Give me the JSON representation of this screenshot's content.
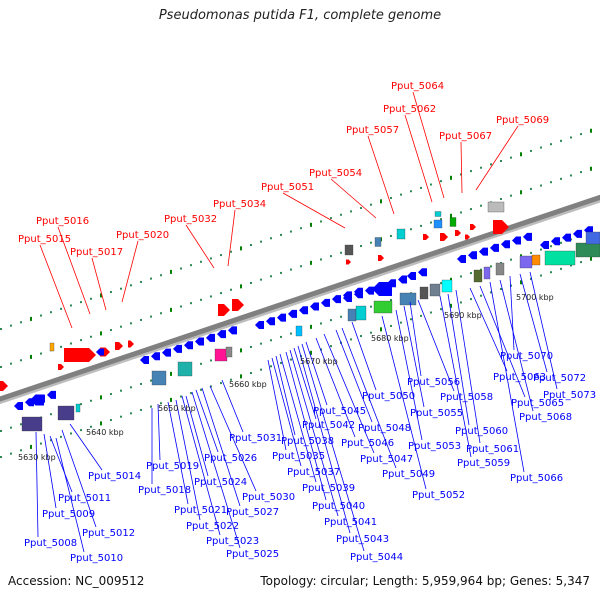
{
  "title": "Pseudomonas putida F1, complete genome",
  "footer": {
    "accession": "Accession: NC_009512",
    "summary": "Topology: circular; Length: 5,959,964 bp; Genes: 5,347"
  },
  "colors": {
    "forward": "#ff0000",
    "reverse": "#0000ff",
    "backbone": "#808080"
  },
  "ticks": [
    {
      "label": "5630 kbp"
    },
    {
      "label": "5640 kbp"
    },
    {
      "label": "5650 kbp"
    },
    {
      "label": "5660 kbp"
    },
    {
      "label": "5670 kbp"
    },
    {
      "label": "5680 kbp"
    },
    {
      "label": "5690 kbp"
    },
    {
      "label": "5700 kbp"
    }
  ],
  "forward_labels": [
    "Pput_5015",
    "Pput_5016",
    "Pput_5017",
    "Pput_5020",
    "Pput_5032",
    "Pput_5034",
    "Pput_5051",
    "Pput_5054",
    "Pput_5057",
    "Pput_5062",
    "Pput_5064",
    "Pput_5067",
    "Pput_5069"
  ],
  "reverse_labels": [
    "Pput_5008",
    "Pput_5009",
    "Pput_5010",
    "Pput_5011",
    "Pput_5012",
    "Pput_5014",
    "Pput_5018",
    "Pput_5019",
    "Pput_5021",
    "Pput_5022",
    "Pput_5023",
    "Pput_5024",
    "Pput_5025",
    "Pput_5026",
    "Pput_5027",
    "Pput_5030",
    "Pput_5031",
    "Pput_5035",
    "Pput_5037",
    "Pput_5038",
    "Pput_5039",
    "Pput_5040",
    "Pput_5041",
    "Pput_5042",
    "Pput_5043",
    "Pput_5044",
    "Pput_5045",
    "Pput_5046",
    "Pput_5047",
    "Pput_5048",
    "Pput_5049",
    "Pput_5050",
    "Pput_5052",
    "Pput_5053",
    "Pput_5055",
    "Pput_5056",
    "Pput_5058",
    "Pput_5059",
    "Pput_5060",
    "Pput_5061",
    "Pput_5063",
    "Pput_5065",
    "Pput_5066",
    "Pput_5068",
    "Pput_5070",
    "Pput_5072",
    "Pput_5073"
  ]
}
